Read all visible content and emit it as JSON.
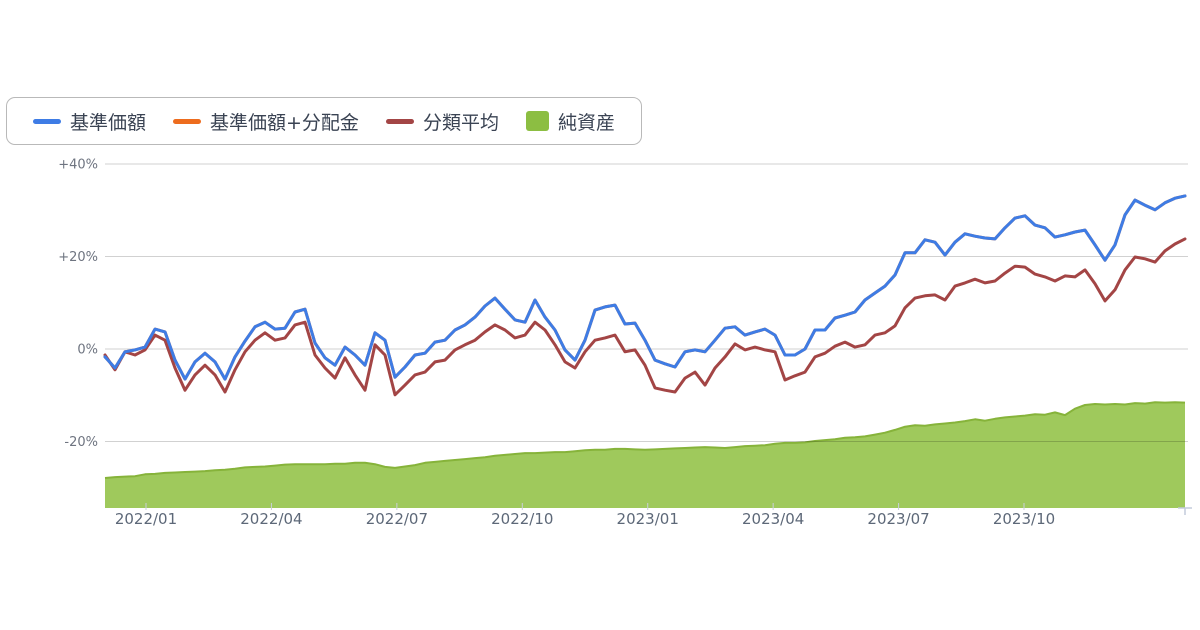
{
  "legend": {
    "items": [
      {
        "label": "基準価額",
        "color": "#3e7ce5",
        "swatch": "line"
      },
      {
        "label": "基準価額+分配金",
        "color": "#ed6c1e",
        "swatch": "line"
      },
      {
        "label": "分類平均",
        "color": "#a34545",
        "swatch": "line"
      },
      {
        "label": "純資産",
        "color": "#8cbe42",
        "swatch": "square"
      }
    ]
  },
  "chart_data": {
    "type": "line",
    "title": "",
    "xlabel": "",
    "ylabel": "",
    "x_start": "2021/12",
    "x_end": "2024/01",
    "sampling": "approx. weekly, 109 points per series",
    "x_tick_labels": [
      "2022/01",
      "2022/04",
      "2022/07",
      "2022/10",
      "2023/01",
      "2023/04",
      "2023/07",
      "2023/10"
    ],
    "y_tick_labels": [
      "+40%",
      "+20%",
      "0%",
      "-20%"
    ],
    "y_axis": {
      "min": -34.4,
      "max": 40,
      "gridlines": [
        40,
        20,
        0,
        -20
      ],
      "format": "percent",
      "grid": true
    },
    "legend_position": "top-left",
    "series": [
      {
        "name": "基準価額",
        "type": "line",
        "color": "#3e7ce5",
        "unit": "%",
        "values": [
          -1.7,
          -4.1,
          -0.6,
          -0.2,
          0.4,
          4.3,
          3.7,
          -2.4,
          -6.5,
          -2.8,
          -0.9,
          -2.8,
          -6.5,
          -1.7,
          1.7,
          4.8,
          5.8,
          4.3,
          4.5,
          8.0,
          8.6,
          1.3,
          -1.9,
          -3.5,
          0.4,
          -1.3,
          -3.5,
          3.5,
          1.9,
          -6.1,
          -3.9,
          -1.3,
          -0.9,
          1.5,
          1.9,
          4.1,
          5.2,
          6.9,
          9.3,
          11.0,
          8.6,
          6.3,
          5.8,
          10.6,
          6.9,
          4.1,
          -0.2,
          -2.4,
          1.9,
          8.4,
          9.1,
          9.5,
          5.4,
          5.6,
          1.9,
          -2.4,
          -3.2,
          -3.9,
          -0.6,
          -0.2,
          -0.6,
          1.9,
          4.5,
          4.8,
          3.0,
          3.7,
          4.3,
          3.0,
          -1.3,
          -1.3,
          0.0,
          4.1,
          4.1,
          6.7,
          7.3,
          8.0,
          10.6,
          12.1,
          13.6,
          16.0,
          20.8,
          20.8,
          23.6,
          23.1,
          20.3,
          23.1,
          24.9,
          24.4,
          24.0,
          23.8,
          26.2,
          28.3,
          28.8,
          26.8,
          26.2,
          24.2,
          24.7,
          25.3,
          25.7,
          22.5,
          19.2,
          22.5,
          29.0,
          32.2,
          31.1,
          30.1,
          31.6,
          32.6,
          33.1
        ]
      },
      {
        "name": "基準価額+分配金",
        "type": "line",
        "color": "#ed6c1e",
        "unit": "%",
        "values_ref": "基準価額",
        "note": "coincides exactly with 基準価額 (no distributions), hidden behind the blue line"
      },
      {
        "name": "分類平均",
        "type": "line",
        "color": "#a34545",
        "unit": "%",
        "values": [
          -1.3,
          -4.5,
          -0.6,
          -1.3,
          -0.2,
          3.0,
          1.9,
          -4.1,
          -8.9,
          -5.6,
          -3.5,
          -5.6,
          -9.3,
          -4.5,
          -0.6,
          1.9,
          3.5,
          1.9,
          2.4,
          5.2,
          5.8,
          -1.3,
          -4.1,
          -6.3,
          -1.9,
          -5.6,
          -8.9,
          0.9,
          -1.3,
          -9.9,
          -7.8,
          -5.6,
          -5.0,
          -2.8,
          -2.4,
          -0.2,
          0.9,
          1.9,
          3.7,
          5.2,
          4.1,
          2.4,
          3.0,
          5.8,
          4.1,
          0.9,
          -2.8,
          -4.1,
          -0.6,
          1.9,
          2.4,
          3.0,
          -0.6,
          -0.2,
          -3.5,
          -8.4,
          -8.9,
          -9.3,
          -6.3,
          -5.0,
          -7.8,
          -4.1,
          -1.7,
          1.1,
          -0.2,
          0.4,
          -0.2,
          -0.6,
          -6.7,
          -5.8,
          -5.0,
          -1.7,
          -0.9,
          0.6,
          1.5,
          0.4,
          0.9,
          3.0,
          3.5,
          5.0,
          8.9,
          11.0,
          11.5,
          11.7,
          10.6,
          13.6,
          14.3,
          15.1,
          14.3,
          14.7,
          16.4,
          17.9,
          17.7,
          16.2,
          15.6,
          14.7,
          15.8,
          15.6,
          17.1,
          14.1,
          10.4,
          12.8,
          17.1,
          19.9,
          19.5,
          18.8,
          21.2,
          22.7,
          23.8
        ]
      },
      {
        "name": "純資産",
        "type": "area",
        "fill": "#9fc95c",
        "stroke": "#86b33a",
        "unit": "relative (unlabeled hidden axis)",
        "note": "net assets area, values expressed on the left percent scale for shape only",
        "values": [
          -27.9,
          -27.7,
          -27.6,
          -27.5,
          -27.1,
          -27.0,
          -26.8,
          -26.7,
          -26.6,
          -26.5,
          -26.4,
          -26.2,
          -26.1,
          -25.9,
          -25.6,
          -25.5,
          -25.4,
          -25.2,
          -25.0,
          -24.9,
          -24.9,
          -24.9,
          -24.9,
          -24.8,
          -24.8,
          -24.6,
          -24.6,
          -24.9,
          -25.5,
          -25.7,
          -25.4,
          -25.1,
          -24.6,
          -24.4,
          -24.2,
          -24.0,
          -23.8,
          -23.6,
          -23.4,
          -23.1,
          -22.9,
          -22.7,
          -22.5,
          -22.5,
          -22.4,
          -22.3,
          -22.3,
          -22.1,
          -21.9,
          -21.8,
          -21.8,
          -21.6,
          -21.6,
          -21.7,
          -21.8,
          -21.7,
          -21.6,
          -21.5,
          -21.4,
          -21.3,
          -21.2,
          -21.3,
          -21.4,
          -21.2,
          -21.0,
          -20.9,
          -20.8,
          -20.5,
          -20.3,
          -20.3,
          -20.2,
          -19.9,
          -19.7,
          -19.5,
          -19.2,
          -19.1,
          -18.9,
          -18.5,
          -18.1,
          -17.5,
          -16.8,
          -16.5,
          -16.6,
          -16.3,
          -16.1,
          -15.9,
          -15.6,
          -15.2,
          -15.5,
          -15.1,
          -14.8,
          -14.6,
          -14.4,
          -14.1,
          -14.2,
          -13.7,
          -14.3,
          -12.9,
          -12.1,
          -11.9,
          -12.0,
          -11.9,
          -12.0,
          -11.7,
          -11.8,
          -11.5,
          -11.6,
          -11.5,
          -11.6
        ]
      }
    ]
  },
  "colors": {
    "gridline": "rgba(0,0,0,0.18)",
    "tick": "#c9cfda",
    "end_tick": "#c3cadb",
    "legend_border": "#b9b9b9",
    "background": "#ffffff"
  }
}
